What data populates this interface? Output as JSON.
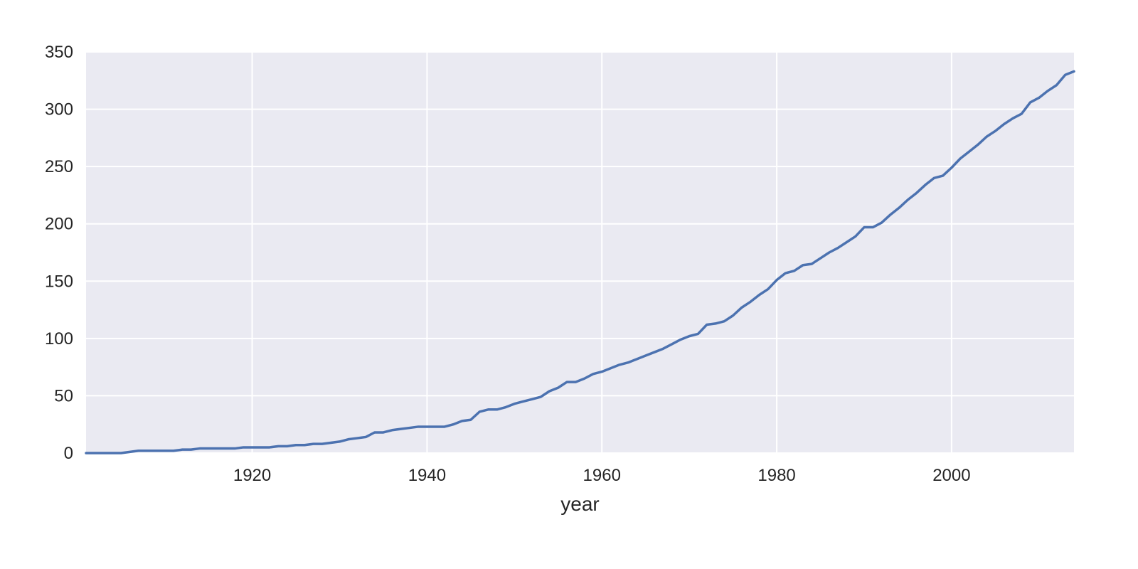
{
  "chart_data": {
    "type": "line",
    "title": "",
    "xlabel": "year",
    "ylabel": "",
    "xlim": [
      1901,
      2014
    ],
    "ylim": [
      0,
      350
    ],
    "x_ticks": [
      1920,
      1940,
      1960,
      1980,
      2000
    ],
    "y_ticks": [
      0,
      50,
      100,
      150,
      200,
      250,
      300,
      350
    ],
    "grid": true,
    "legend": "none",
    "colors": {
      "line": "#4c72b0",
      "plot_background": "#eaeaf2",
      "grid": "#ffffff"
    },
    "series": [
      {
        "x": [
          1901,
          1902,
          1903,
          1904,
          1905,
          1906,
          1907,
          1908,
          1909,
          1910,
          1911,
          1912,
          1913,
          1914,
          1915,
          1916,
          1917,
          1918,
          1919,
          1920,
          1921,
          1922,
          1923,
          1924,
          1925,
          1926,
          1927,
          1928,
          1929,
          1930,
          1931,
          1932,
          1933,
          1934,
          1935,
          1936,
          1937,
          1938,
          1939,
          1940,
          1941,
          1942,
          1943,
          1944,
          1945,
          1946,
          1947,
          1948,
          1949,
          1950,
          1951,
          1952,
          1953,
          1954,
          1955,
          1956,
          1957,
          1958,
          1959,
          1960,
          1961,
          1962,
          1963,
          1964,
          1965,
          1966,
          1967,
          1968,
          1969,
          1970,
          1971,
          1972,
          1973,
          1974,
          1975,
          1976,
          1977,
          1978,
          1979,
          1980,
          1981,
          1982,
          1983,
          1984,
          1985,
          1986,
          1987,
          1988,
          1989,
          1990,
          1991,
          1992,
          1993,
          1994,
          1995,
          1996,
          1997,
          1998,
          1999,
          2000,
          2001,
          2002,
          2003,
          2004,
          2005,
          2006,
          2007,
          2008,
          2009,
          2010,
          2011,
          2012,
          2013,
          2014
        ],
        "values": [
          0,
          0,
          0,
          0,
          0,
          1,
          2,
          2,
          2,
          2,
          2,
          3,
          3,
          4,
          4,
          4,
          4,
          4,
          5,
          5,
          5,
          5,
          6,
          6,
          7,
          7,
          8,
          8,
          9,
          10,
          12,
          13,
          14,
          18,
          18,
          20,
          21,
          22,
          23,
          23,
          23,
          23,
          25,
          28,
          29,
          36,
          38,
          38,
          40,
          43,
          45,
          47,
          49,
          54,
          57,
          62,
          62,
          65,
          69,
          71,
          74,
          77,
          79,
          82,
          85,
          88,
          91,
          95,
          99,
          102,
          104,
          112,
          113,
          115,
          120,
          127,
          132,
          138,
          143,
          151,
          157,
          159,
          164,
          165,
          170,
          175,
          179,
          184,
          189,
          197,
          197,
          201,
          208,
          214,
          221,
          227,
          234,
          240,
          242,
          249,
          257,
          263,
          269,
          276,
          281,
          287,
          292,
          296,
          306,
          310,
          316,
          321,
          330,
          333
        ]
      }
    ]
  }
}
